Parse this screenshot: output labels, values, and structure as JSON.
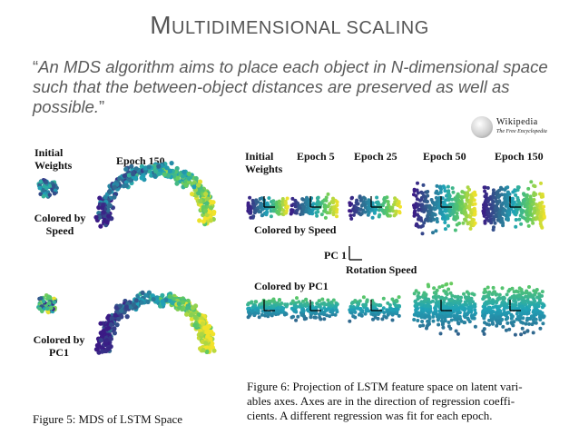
{
  "slide": {
    "title_first": "M",
    "title_rest": "ultidimensional scaling",
    "quote_open": "“",
    "quote_text": "An MDS algorithm aims to place each object in N-dimensional space such that the between-object distances are preserved as well as possible.",
    "quote_close": "”"
  },
  "wiki": {
    "wordmark": "Wikipedia",
    "tagline": "The Free Encyclopedia",
    "icon": "wikipedia-globe-icon"
  },
  "fig5": {
    "initial_weights": "Initial Weights",
    "epoch": "Epoch 150",
    "colored_speed": "Colored by Speed",
    "colored_pc1": "Colored by PC1",
    "caption": "Figure 5: MDS of LSTM Space"
  },
  "fig6": {
    "headers": [
      "Initial Weights",
      "Epoch 5",
      "Epoch 25",
      "Epoch 50",
      "Epoch 150"
    ],
    "colored_speed": "Colored by Speed",
    "axis_pc1": "PC 1",
    "axis_rotation": "Rotation Speed",
    "colored_pc1": "Colored by PC1",
    "caption_line1": "Figure 6: Projection of LSTM feature space on latent vari-",
    "caption_line2": "ables axes. Axes are in the direction of regression coeffi-",
    "caption_line3": "cients. A different regression was fit for each epoch."
  },
  "colors": {
    "viridis_dark": "#3b1a85",
    "viridis_mid": "#1fa3b7",
    "viridis_light": "#f2e22a",
    "text": "#555555"
  }
}
